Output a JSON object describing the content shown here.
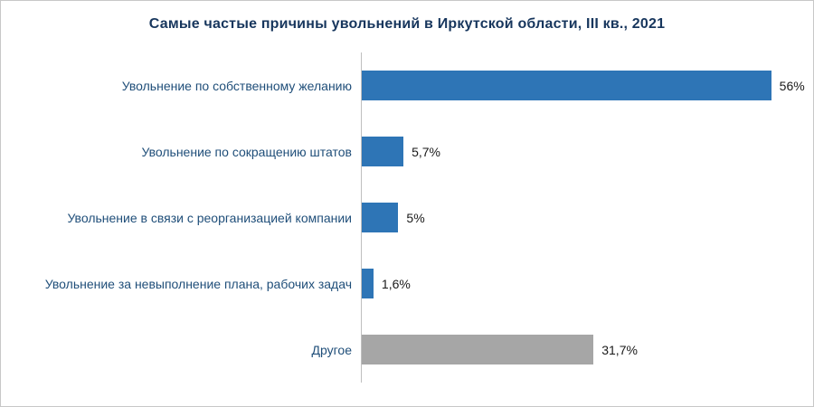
{
  "title": "Самые частые причины увольнений в Иркутской области, III кв., 2021",
  "colors": {
    "title_text": "#17365d",
    "category_text": "#1f4e79",
    "value_text": "#1a1a1a",
    "axis_line": "#bfbfbf",
    "frame_border": "#c8c8c8",
    "background": "#ffffff"
  },
  "chart_data": {
    "type": "bar",
    "orientation": "horizontal",
    "title": "Самые частые причины увольнений в Иркутской области, III кв., 2021",
    "categories": [
      "Увольнение по собственному желанию",
      "Увольнение по сокращению штатов",
      "Увольнение в связи с реорганизацией компании",
      "Увольнение за невыполнение плана, рабочих задач",
      "Другое"
    ],
    "values": [
      56,
      5.7,
      5,
      1.6,
      31.7
    ],
    "value_labels": [
      "56%",
      "5,7%",
      "5%",
      "1,6%",
      "31,7%"
    ],
    "bar_colors": [
      "#2e75b6",
      "#2e75b6",
      "#2e75b6",
      "#2e75b6",
      "#a6a6a6"
    ],
    "xlabel": "",
    "ylabel": "",
    "xlim": [
      0,
      60
    ],
    "grid": false,
    "legend": "none",
    "data_labels": "outside-end"
  }
}
